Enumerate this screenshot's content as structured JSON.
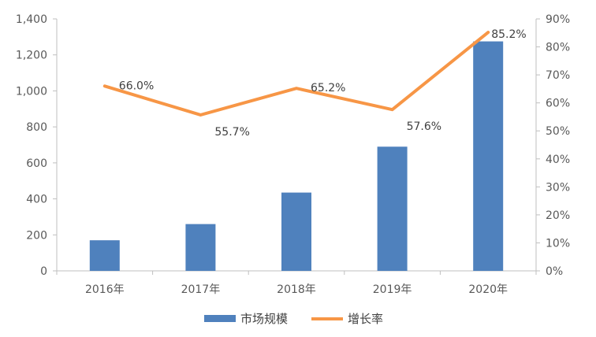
{
  "chart_data": {
    "type": "bar",
    "categories": [
      "2016年",
      "2017年",
      "2018年",
      "2019年",
      "2020年"
    ],
    "series": [
      {
        "name": "市场规模",
        "type": "bar",
        "axis": "left",
        "values": [
          170,
          260,
          435,
          690,
          1275
        ],
        "color": "#4F81BD"
      },
      {
        "name": "增长率",
        "type": "line",
        "axis": "right",
        "values": [
          66.0,
          55.7,
          65.2,
          57.6,
          85.2
        ],
        "labels": [
          "66.0%",
          "55.7%",
          "65.2%",
          "57.6%",
          "85.2%"
        ],
        "color": "#F79646"
      }
    ],
    "y_left": {
      "ylim": [
        0,
        1400
      ],
      "ticks": [
        0,
        200,
        400,
        600,
        800,
        1000,
        1200,
        1400
      ],
      "tick_labels": [
        "0",
        "200",
        "400",
        "600",
        "800",
        "1,000",
        "1,200",
        "1,400"
      ]
    },
    "y_right": {
      "ylim": [
        0,
        90
      ],
      "ticks": [
        0,
        10,
        20,
        30,
        40,
        50,
        60,
        70,
        80,
        90
      ],
      "tick_labels": [
        "0%",
        "10%",
        "20%",
        "30%",
        "40%",
        "50%",
        "60%",
        "70%",
        "80%",
        "90%"
      ]
    },
    "grid": false,
    "legend_position": "bottom"
  }
}
